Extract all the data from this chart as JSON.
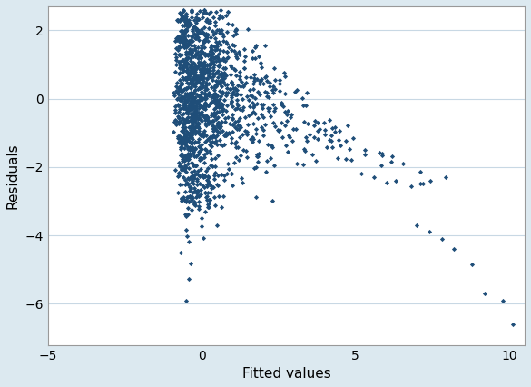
{
  "title": "",
  "xlabel": "Fitted values",
  "ylabel": "Residuals",
  "xlim": [
    -5,
    10.5
  ],
  "ylim": [
    -7.2,
    2.7
  ],
  "xticks": [
    -5,
    0,
    5,
    10
  ],
  "yticks": [
    -6,
    -4,
    -2,
    0,
    2
  ],
  "marker_color": "#1f4e79",
  "marker_size": 7,
  "background_color": "#dce9f0",
  "plot_background": "#ffffff",
  "grid_color": "#c8d8e4",
  "seed": 12345
}
